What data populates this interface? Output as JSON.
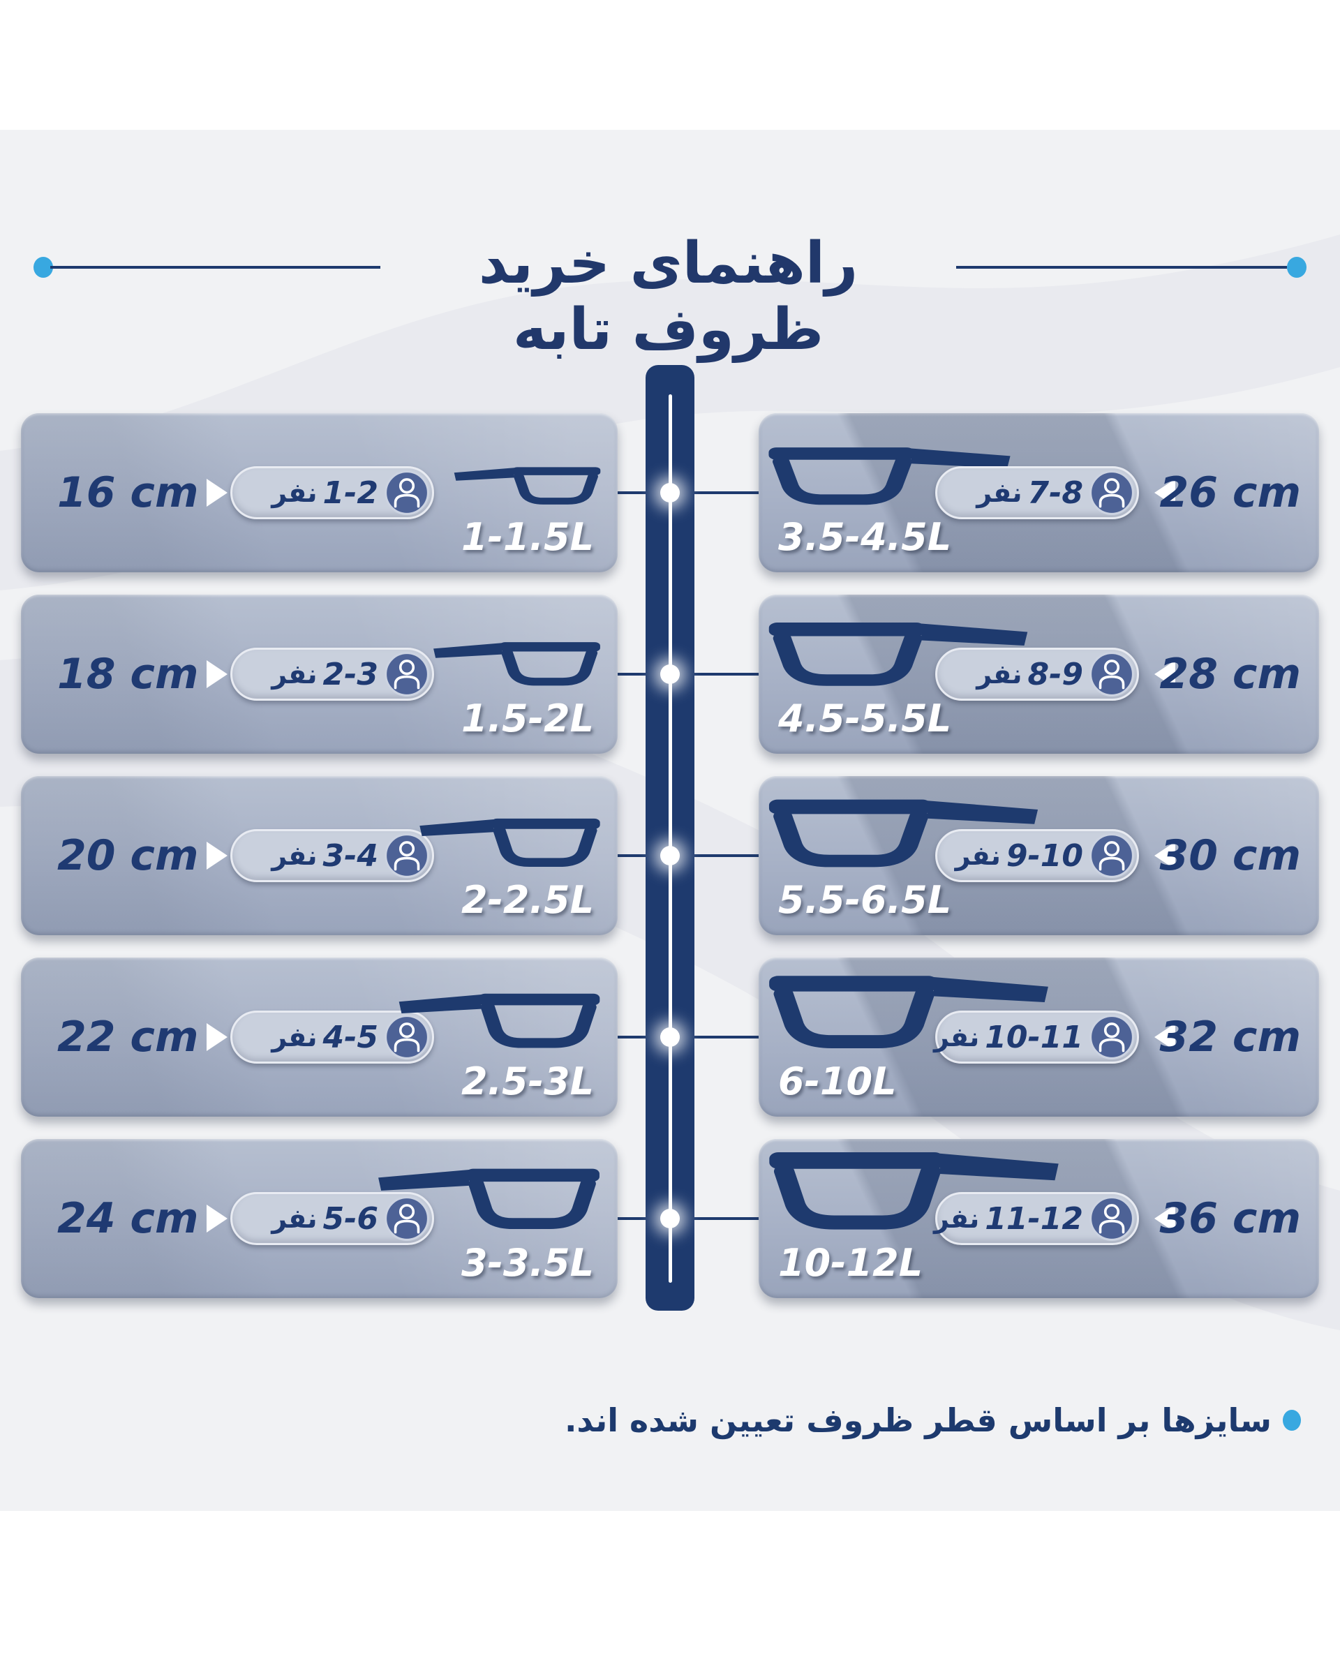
{
  "title": "راهنمای خرید ظروف تابه",
  "footer_note": "سایزها بر اساس قطر ظروف تعیین شده اند.",
  "people_unit": "نفر",
  "colors": {
    "navy": "#1e3a6e",
    "light_blue": "#38a8e0",
    "panel_gray_blue": "#a7b1c6",
    "pill_gray": "#c9d0dd",
    "background_gray": "#f1f2f4",
    "capacity_text": "#ffffff"
  },
  "left_rows": [
    {
      "size": "16 cm",
      "people": "1-2",
      "capacity": "1-1.5L"
    },
    {
      "size": "18 cm",
      "people": "2-3",
      "capacity": "1.5-2L"
    },
    {
      "size": "20 cm",
      "people": "3-4",
      "capacity": "2-2.5L"
    },
    {
      "size": "22 cm",
      "people": "4-5",
      "capacity": "2.5-3L"
    },
    {
      "size": "24 cm",
      "people": "5-6",
      "capacity": "3-3.5L"
    }
  ],
  "right_rows": [
    {
      "size": "26 cm",
      "people": "7-8",
      "capacity": "3.5-4.5L"
    },
    {
      "size": "28 cm",
      "people": "8-9",
      "capacity": "4.5-5.5L"
    },
    {
      "size": "30 cm",
      "people": "9-10",
      "capacity": "5.5-6.5L"
    },
    {
      "size": "32 cm",
      "people": "10-11",
      "capacity": "6-10L"
    },
    {
      "size": "36 cm",
      "people": "11-12",
      "capacity": "10-12L"
    }
  ]
}
